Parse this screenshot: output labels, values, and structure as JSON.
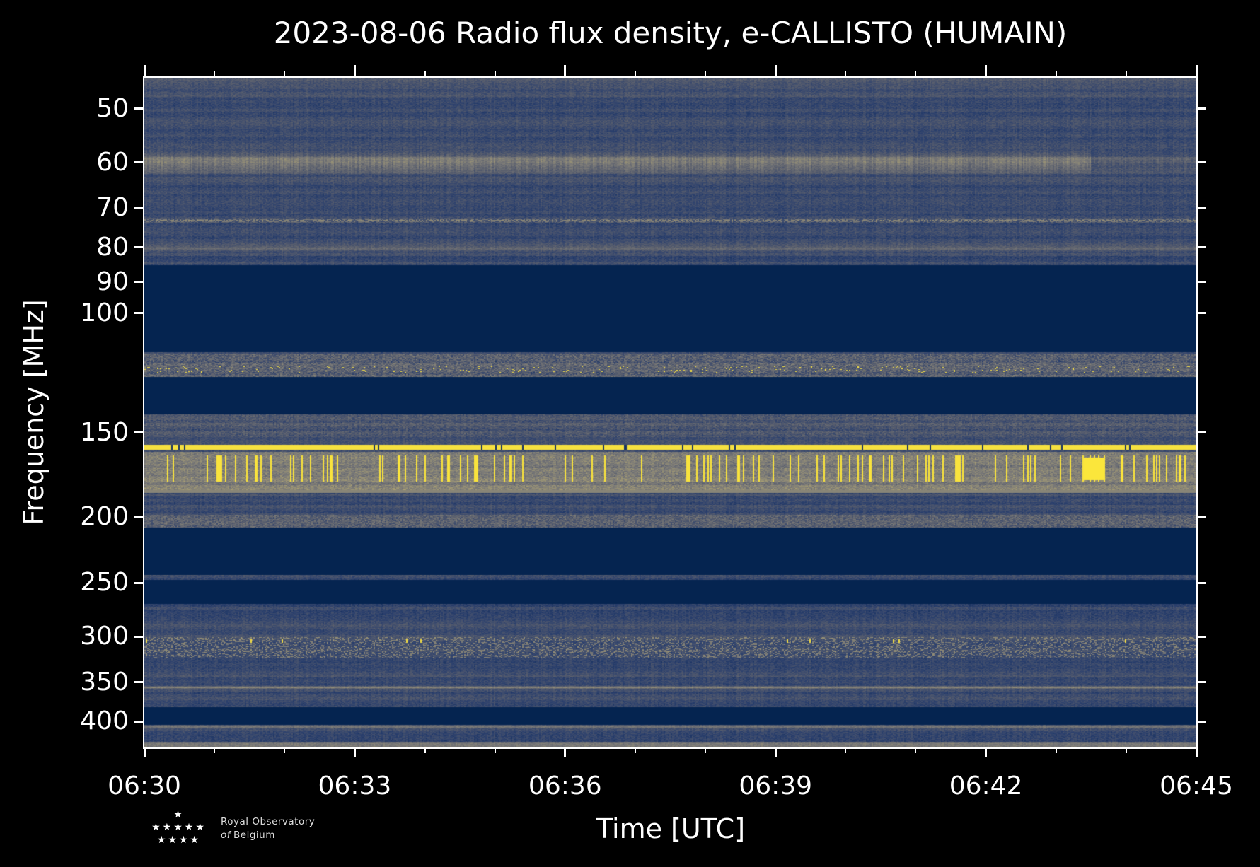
{
  "chart_data": {
    "type": "heatmap",
    "title": "2023-08-06 Radio flux density, e-CALLISTO (HUMAIN)",
    "xlabel": "Time [UTC]",
    "ylabel": "Frequency [MHz]",
    "xlim": [
      "06:30",
      "06:45"
    ],
    "ylim_mhz": [
      437,
      45
    ],
    "yscale": "log",
    "x_ticks": [
      "06:30",
      "06:33",
      "06:36",
      "06:39",
      "06:42",
      "06:45"
    ],
    "x_tick_minutes": [
      0,
      3,
      6,
      9,
      12,
      15
    ],
    "x_minor_tick_minutes": [
      1,
      2,
      4,
      5,
      7,
      8,
      10,
      11,
      13,
      14
    ],
    "y_ticks": [
      50,
      60,
      70,
      80,
      90,
      100,
      150,
      200,
      250,
      300,
      350,
      400
    ],
    "y_tick_labels": [
      "50",
      "60",
      "70",
      "80",
      "90",
      "100",
      "150",
      "200",
      "250",
      "300",
      "350",
      "400"
    ],
    "colormap": [
      "#00204c",
      "#2a3f6d",
      "#575d6d",
      "#7c7b78",
      "#a59c74",
      "#d3c164",
      "#fee838"
    ],
    "blank_bands_mhz": [
      [
        85,
        114
      ],
      [
        124,
        141
      ],
      [
        207,
        243
      ],
      [
        247,
        268
      ],
      [
        381,
        404
      ]
    ],
    "features": [
      {
        "name": "60 MHz emission band",
        "freq_mhz": 60,
        "level": 0.5
      },
      {
        "name": "73 MHz interference",
        "freq_mhz": 73,
        "level": 0.45
      },
      {
        "name": "121 MHz speckle",
        "freq_mhz": 121,
        "level": 0.55
      },
      {
        "name": "157 MHz continuous line",
        "freq_mhz": 157,
        "level": 0.98
      },
      {
        "name": "163-180 MHz bursts",
        "freq_range_mhz": [
          163,
          180
        ],
        "level": 1.0
      },
      {
        "name": "355 MHz line",
        "freq_mhz": 355,
        "level": 0.45
      }
    ]
  },
  "logo": {
    "line1": "Royal Observatory",
    "of": "of",
    "line2": "Belgium",
    "stars": "★"
  }
}
